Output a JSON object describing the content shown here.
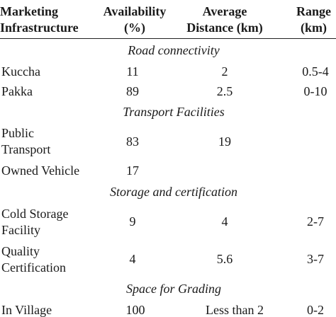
{
  "header": {
    "col1": [
      "Marketing",
      "Infrastructure"
    ],
    "col2": [
      "Availability",
      "(%)"
    ],
    "col3": [
      "Average",
      "Distance (km)"
    ],
    "col4": [
      "Range",
      "(km)"
    ]
  },
  "sections": [
    {
      "title": "Road connectivity",
      "rows": [
        {
          "name": [
            "Kuccha"
          ],
          "availability": "11",
          "distance": "2",
          "range": "0.5-4"
        },
        {
          "name": [
            "Pakka"
          ],
          "availability": "89",
          "distance": "2.5",
          "range": "0-10"
        }
      ]
    },
    {
      "title": "Transport Facilities",
      "rows": [
        {
          "name": [
            "Public",
            "Transport"
          ],
          "availability": "83",
          "distance": "19",
          "range": ""
        },
        {
          "name": [
            "Owned Vehicle"
          ],
          "availability": "17",
          "distance": "",
          "range": ""
        }
      ]
    },
    {
      "title": "Storage and certification",
      "rows": [
        {
          "name": [
            "Cold Storage",
            "Facility"
          ],
          "availability": "9",
          "distance": "4",
          "range": "2-7"
        },
        {
          "name": [
            "Quality",
            "Certification"
          ],
          "availability": "4",
          "distance": "5.6",
          "range": "3-7"
        }
      ]
    },
    {
      "title": "Space for Grading",
      "rows": [
        {
          "name": [
            "In Village"
          ],
          "availability": "100",
          "distance": "Less than 2",
          "range": "0-2"
        }
      ]
    }
  ]
}
